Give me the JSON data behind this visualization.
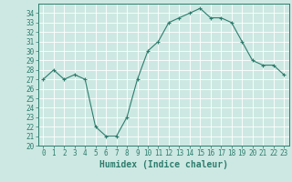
{
  "title": "",
  "xlabel": "Humidex (Indice chaleur)",
  "ylabel": "",
  "x": [
    0,
    1,
    2,
    3,
    4,
    5,
    6,
    7,
    8,
    9,
    10,
    11,
    12,
    13,
    14,
    15,
    16,
    17,
    18,
    19,
    20,
    21,
    22,
    23
  ],
  "y": [
    27,
    28,
    27,
    27.5,
    27,
    22,
    21,
    21,
    23,
    27,
    30,
    31,
    33,
    33.5,
    34,
    34.5,
    33.5,
    33.5,
    33,
    31,
    29,
    28.5,
    28.5,
    27.5
  ],
  "line_color": "#2e7d6e",
  "marker": "+",
  "marker_color": "#2e7d6e",
  "bg_color": "#cde8e2",
  "grid_color": "#ffffff",
  "ylim": [
    20,
    35
  ],
  "yticks": [
    20,
    21,
    22,
    23,
    24,
    25,
    26,
    27,
    28,
    29,
    30,
    31,
    32,
    33,
    34
  ],
  "xticks": [
    0,
    1,
    2,
    3,
    4,
    5,
    6,
    7,
    8,
    9,
    10,
    11,
    12,
    13,
    14,
    15,
    16,
    17,
    18,
    19,
    20,
    21,
    22,
    23
  ],
  "tick_color": "#2e7d6e",
  "label_color": "#2e7d6e",
  "tick_fontsize": 5.5,
  "xlabel_fontsize": 7.0
}
